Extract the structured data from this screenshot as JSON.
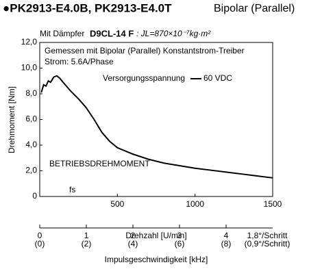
{
  "chart_data": {
    "type": "line",
    "title": "●PK2913-E4.0B, PK2913-E4.0T",
    "title_suffix": "Bipolar (Parallel)",
    "subtitle": [
      "Mit Dämpfer",
      "D9CL-14 F",
      ": JL=870×10⁻⁷kg·m²"
    ],
    "annotations": [
      "Gemessen mit Bipolar (Parallel) Konstantstrom-Treiber",
      "Strom: 5.6A/Phase",
      "BETRIEBSDREHMOMENT",
      "fs"
    ],
    "legend_title": "Versorgungsspannung",
    "x_label": "Drehzahl [U/min]",
    "y_label": "Drehmoment [Nm]",
    "xlim": [
      0,
      1500
    ],
    "xticks": [
      500,
      1000,
      1500
    ],
    "ylim": [
      0,
      12
    ],
    "yticks": [
      0,
      {
        "value": 2,
        "label": "2,0"
      },
      {
        "value": 4,
        "label": "4,0"
      },
      {
        "value": 6,
        "label": "6,0"
      },
      {
        "value": 8,
        "label": "8,0"
      },
      {
        "value": 10,
        "label": "10,0"
      },
      {
        "value": 12,
        "label": "12,0"
      }
    ],
    "series": [
      {
        "name": "60 VDC",
        "color": "#000000",
        "x": [
          10,
          25,
          40,
          55,
          70,
          90,
          110,
          130,
          150,
          200,
          250,
          300,
          350,
          400,
          450,
          500,
          600,
          700,
          800,
          900,
          1000,
          1100,
          1200,
          1300,
          1400,
          1500
        ],
        "values": [
          8.1,
          8.7,
          8.6,
          9.0,
          8.9,
          9.3,
          9.4,
          9.2,
          8.9,
          8.2,
          7.6,
          6.9,
          6.0,
          5.0,
          4.3,
          3.8,
          3.3,
          2.9,
          2.6,
          2.4,
          2.2,
          2.05,
          1.9,
          1.75,
          1.6,
          1.45
        ]
      }
    ],
    "pulse_axis": {
      "label": "Impulsgeschwindigkeit [kHz]",
      "lim": [
        0,
        5
      ],
      "ticks": [
        0,
        1,
        2,
        3,
        4
      ],
      "half_step_labels": [
        "(0)",
        "(2)",
        "(4)",
        "(6)",
        "(8)"
      ],
      "step_labels": [
        "1,8°/Schritt",
        "(0,9°/Schritt)"
      ]
    }
  }
}
